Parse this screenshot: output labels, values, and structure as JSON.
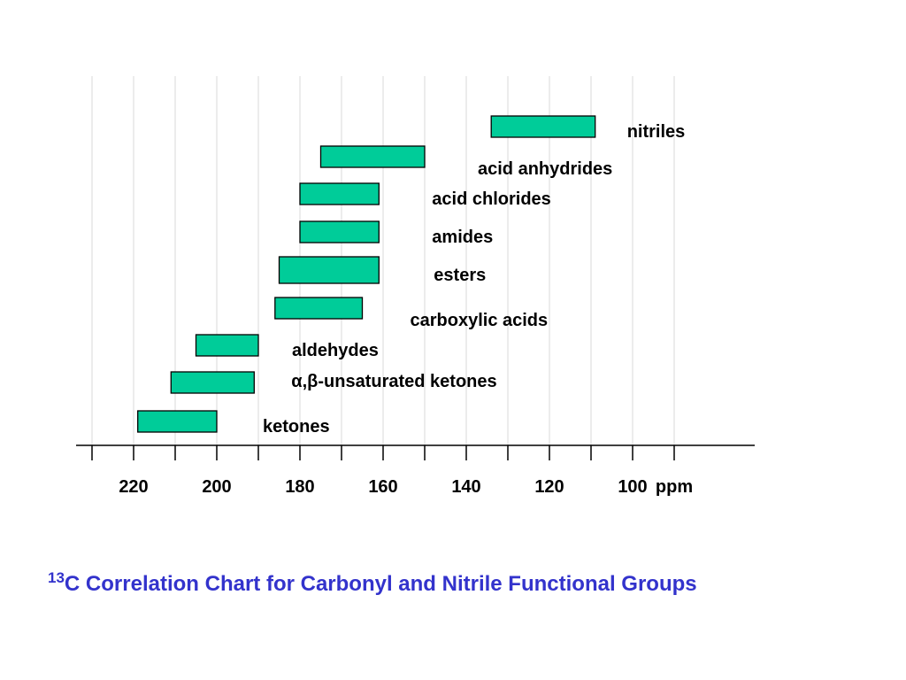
{
  "colors": {
    "bar_fill": "#00cc99",
    "bar_stroke": "#000000",
    "title": "#3333cc",
    "grid": "#e0e0e0"
  },
  "chart_data": {
    "type": "bar",
    "orientation": "horizontal-range",
    "title_sup": "13",
    "title_main": "C Correlation Chart for Carbonyl and Nitrile Functional Groups",
    "xlabel": "ppm",
    "x_reversed": true,
    "xlim": [
      233,
      79
    ],
    "xticks": [
      230,
      220,
      210,
      200,
      190,
      180,
      170,
      160,
      150,
      140,
      130,
      120,
      110,
      100,
      90
    ],
    "xtick_labels": [
      {
        "value": 220,
        "label": "220"
      },
      {
        "value": 200,
        "label": "200"
      },
      {
        "value": 180,
        "label": "180"
      },
      {
        "value": 160,
        "label": "160"
      },
      {
        "value": 140,
        "label": "140"
      },
      {
        "value": 120,
        "label": "120"
      },
      {
        "value": 100,
        "label": "100"
      },
      {
        "value": 90,
        "label": "ppm"
      }
    ],
    "grid": true,
    "ranges": [
      {
        "label": "nitriles",
        "from": 134,
        "to": 109
      },
      {
        "label": "acid anhydrides",
        "from": 175,
        "to": 150
      },
      {
        "label": "acid chlorides",
        "from": 180,
        "to": 161
      },
      {
        "label": "amides",
        "from": 180,
        "to": 161
      },
      {
        "label": "esters",
        "from": 185,
        "to": 161
      },
      {
        "label": "carboxylic acids",
        "from": 186,
        "to": 165
      },
      {
        "label": "aldehydes",
        "from": 205,
        "to": 190
      },
      {
        "label": "α,β-unsaturated ketones",
        "from": 211,
        "to": 191
      },
      {
        "label": "ketones",
        "from": 219,
        "to": 200
      }
    ]
  }
}
